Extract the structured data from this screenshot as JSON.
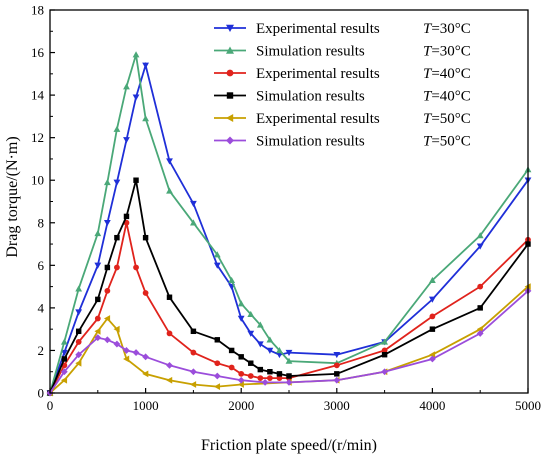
{
  "chart_data": {
    "type": "line",
    "xlabel": "Friction plate speed/(r/min)",
    "ylabel": "Drag torque/(N·m)",
    "xlim": [
      0,
      5000
    ],
    "ylim": [
      0,
      18
    ],
    "xticks": [
      0,
      1000,
      2000,
      3000,
      4000,
      5000
    ],
    "yticks": [
      0,
      2,
      4,
      6,
      8,
      10,
      12,
      14,
      16,
      18
    ],
    "legend_position": "top-right",
    "grid": false,
    "series": [
      {
        "name": "Experimental results",
        "temp_var": "T",
        "temp_value": "=30°C",
        "color": "#1f2fd8",
        "marker": "triangle-down",
        "points": [
          [
            0,
            0
          ],
          [
            150,
            1.9
          ],
          [
            300,
            3.8
          ],
          [
            500,
            6.0
          ],
          [
            600,
            8.0
          ],
          [
            700,
            9.9
          ],
          [
            800,
            11.9
          ],
          [
            900,
            13.9
          ],
          [
            1000,
            15.4
          ],
          [
            1250,
            10.9
          ],
          [
            1500,
            8.9
          ],
          [
            1750,
            6.0
          ],
          [
            1900,
            5.0
          ],
          [
            2000,
            3.5
          ],
          [
            2100,
            2.8
          ],
          [
            2200,
            2.3
          ],
          [
            2300,
            2.0
          ],
          [
            2400,
            1.8
          ],
          [
            2500,
            1.9
          ],
          [
            3000,
            1.8
          ],
          [
            3500,
            2.4
          ],
          [
            4000,
            4.4
          ],
          [
            4500,
            6.9
          ],
          [
            5000,
            10.0
          ]
        ]
      },
      {
        "name": "Simulation results",
        "temp_var": "T",
        "temp_value": "=30°C",
        "color": "#4aa878",
        "marker": "triangle-up",
        "points": [
          [
            0,
            0
          ],
          [
            150,
            2.4
          ],
          [
            300,
            4.9
          ],
          [
            500,
            7.5
          ],
          [
            600,
            9.9
          ],
          [
            700,
            12.4
          ],
          [
            800,
            14.4
          ],
          [
            900,
            15.9
          ],
          [
            1000,
            12.9
          ],
          [
            1250,
            9.5
          ],
          [
            1500,
            8.0
          ],
          [
            1750,
            6.5
          ],
          [
            1900,
            5.3
          ],
          [
            2000,
            4.2
          ],
          [
            2100,
            3.7
          ],
          [
            2200,
            3.2
          ],
          [
            2300,
            2.5
          ],
          [
            2400,
            2.0
          ],
          [
            2500,
            1.5
          ],
          [
            3000,
            1.4
          ],
          [
            3500,
            2.4
          ],
          [
            4000,
            5.3
          ],
          [
            4500,
            7.4
          ],
          [
            5000,
            10.5
          ]
        ]
      },
      {
        "name": "Experimental results",
        "temp_var": "T",
        "temp_value": "=40°C",
        "color": "#e0231c",
        "marker": "circle",
        "points": [
          [
            0,
            0
          ],
          [
            150,
            1.3
          ],
          [
            300,
            2.4
          ],
          [
            500,
            3.5
          ],
          [
            600,
            4.8
          ],
          [
            700,
            5.9
          ],
          [
            800,
            8.0
          ],
          [
            900,
            5.9
          ],
          [
            1000,
            4.7
          ],
          [
            1250,
            2.8
          ],
          [
            1500,
            1.9
          ],
          [
            1750,
            1.4
          ],
          [
            1900,
            1.2
          ],
          [
            2000,
            0.9
          ],
          [
            2100,
            0.8
          ],
          [
            2200,
            0.7
          ],
          [
            2300,
            0.7
          ],
          [
            2400,
            0.7
          ],
          [
            2500,
            0.7
          ],
          [
            3000,
            1.3
          ],
          [
            3500,
            2.0
          ],
          [
            4000,
            3.6
          ],
          [
            4500,
            5.0
          ],
          [
            5000,
            7.2
          ]
        ]
      },
      {
        "name": "Simulation results",
        "temp_var": "T",
        "temp_value": "=40°C",
        "color": "#000000",
        "marker": "square",
        "points": [
          [
            0,
            0
          ],
          [
            150,
            1.6
          ],
          [
            300,
            2.9
          ],
          [
            500,
            4.4
          ],
          [
            600,
            5.9
          ],
          [
            700,
            7.3
          ],
          [
            800,
            8.3
          ],
          [
            900,
            10.0
          ],
          [
            1000,
            7.3
          ],
          [
            1250,
            4.5
          ],
          [
            1500,
            2.9
          ],
          [
            1750,
            2.5
          ],
          [
            1900,
            2.0
          ],
          [
            2000,
            1.7
          ],
          [
            2100,
            1.4
          ],
          [
            2200,
            1.1
          ],
          [
            2300,
            1.0
          ],
          [
            2400,
            0.9
          ],
          [
            2500,
            0.8
          ],
          [
            3000,
            0.9
          ],
          [
            3500,
            1.8
          ],
          [
            4000,
            3.0
          ],
          [
            4500,
            4.0
          ],
          [
            5000,
            7.0
          ]
        ]
      },
      {
        "name": "Experimental results",
        "temp_var": "T",
        "temp_value": "=50°C",
        "color": "#c8a000",
        "marker": "triangle-left",
        "points": [
          [
            0,
            0
          ],
          [
            150,
            0.6
          ],
          [
            300,
            1.4
          ],
          [
            500,
            2.9
          ],
          [
            600,
            3.5
          ],
          [
            700,
            3.0
          ],
          [
            800,
            1.6
          ],
          [
            1000,
            0.9
          ],
          [
            1250,
            0.6
          ],
          [
            1500,
            0.4
          ],
          [
            1750,
            0.3
          ],
          [
            2000,
            0.4
          ],
          [
            2500,
            0.5
          ],
          [
            3000,
            0.6
          ],
          [
            3500,
            1.0
          ],
          [
            4000,
            1.8
          ],
          [
            4500,
            3.0
          ],
          [
            5000,
            5.0
          ]
        ]
      },
      {
        "name": "Simulation results",
        "temp_var": "T",
        "temp_value": "=50°C",
        "color": "#9b4ddb",
        "marker": "diamond",
        "points": [
          [
            0,
            0
          ],
          [
            150,
            1.0
          ],
          [
            300,
            1.8
          ],
          [
            500,
            2.6
          ],
          [
            600,
            2.5
          ],
          [
            700,
            2.3
          ],
          [
            800,
            2.0
          ],
          [
            900,
            1.9
          ],
          [
            1000,
            1.7
          ],
          [
            1250,
            1.3
          ],
          [
            1500,
            1.0
          ],
          [
            1750,
            0.8
          ],
          [
            2000,
            0.6
          ],
          [
            2250,
            0.5
          ],
          [
            2500,
            0.5
          ],
          [
            3000,
            0.6
          ],
          [
            3500,
            1.0
          ],
          [
            4000,
            1.6
          ],
          [
            4500,
            2.8
          ],
          [
            5000,
            4.8
          ]
        ]
      }
    ]
  }
}
